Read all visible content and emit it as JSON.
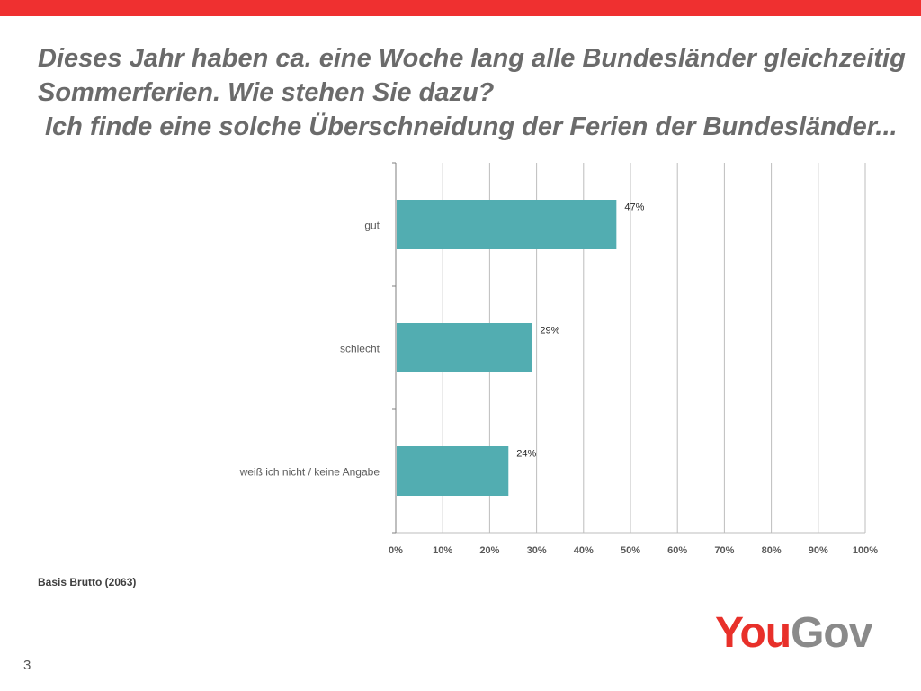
{
  "title": {
    "line1": "Dieses Jahr haben ca. eine Woche lang alle Bundesländer gleichzeitig",
    "line2": "Sommerferien. Wie stehen Sie dazu?",
    "line3": "Ich finde eine solche Überschneidung der Ferien der Bundesländer..."
  },
  "colors": {
    "topbar": "#ef3030",
    "bar": "#52adb1",
    "grid": "#bdbdbd",
    "axis": "#7f7f7f"
  },
  "chart_data": {
    "type": "bar",
    "orientation": "horizontal",
    "categories": [
      "gut",
      "schlecht",
      "weiß ich nicht / keine Angabe"
    ],
    "values": [
      47,
      29,
      24
    ],
    "value_labels": [
      "47%",
      "29%",
      "24%"
    ],
    "xlim": [
      0,
      100
    ],
    "xticks": [
      0,
      10,
      20,
      30,
      40,
      50,
      60,
      70,
      80,
      90,
      100
    ],
    "xtick_labels": [
      "0%",
      "10%",
      "20%",
      "30%",
      "40%",
      "50%",
      "60%",
      "70%",
      "80%",
      "90%",
      "100%"
    ],
    "grid": true,
    "legend": "none"
  },
  "footer": {
    "basis": "Basis Brutto (2063)",
    "page_number": "3"
  },
  "logo": {
    "part1": "You",
    "part2": "Gov"
  }
}
